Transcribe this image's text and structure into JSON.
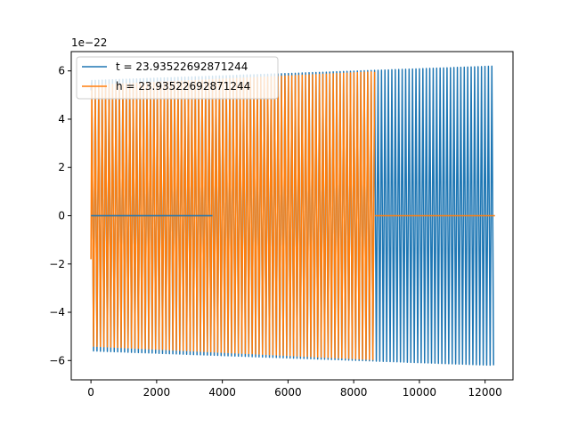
{
  "chart_data": {
    "type": "line",
    "title": "",
    "xlabel": "",
    "ylabel": "",
    "offset_text": "1e−22",
    "xlim": [
      -600,
      12850
    ],
    "ylim": [
      -6.8,
      6.8
    ],
    "y_scale_exponent": -22,
    "xticks": [
      0,
      2000,
      4000,
      6000,
      8000,
      10000,
      12000
    ],
    "xtick_labels": [
      "0",
      "2000",
      "4000",
      "6000",
      "8000",
      "10000",
      "12000"
    ],
    "yticks": [
      -6,
      -4,
      -2,
      0,
      2,
      4,
      6
    ],
    "ytick_labels": [
      "−6",
      "−4",
      "−2",
      "0",
      "2",
      "4",
      "6"
    ],
    "grid": false,
    "legend_position": "top-left",
    "series": [
      {
        "name": "t = 23.93522692871244",
        "color": "#1f77b4",
        "x_range": [
          0,
          12300
        ],
        "zero_segment": [
          0,
          3700
        ],
        "envelope_start": 5.6,
        "envelope_end": 6.2,
        "cycle_length": 105,
        "initial_value": 5.2
      },
      {
        "name": "h = 23.93522692871244",
        "color": "#ff7f0e",
        "x_range": [
          0,
          12300
        ],
        "active_range": [
          0,
          8650
        ],
        "zero_segment": [
          8650,
          12300
        ],
        "envelope_start": 5.4,
        "envelope_end": 6.2,
        "cycle_length": 105,
        "initial_value": -1.8
      }
    ]
  }
}
